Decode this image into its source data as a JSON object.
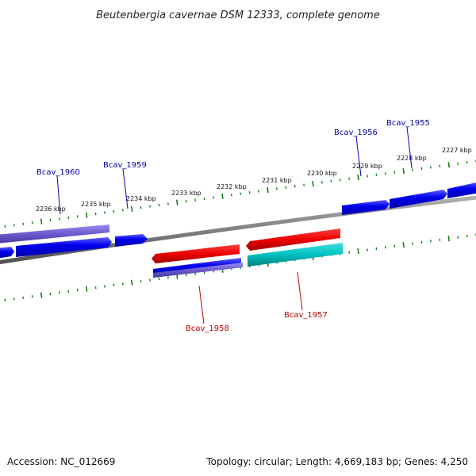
{
  "title": "Beutenbergia cavernae DSM 12333, complete genome",
  "footer": {
    "accession": "Accession: NC_012669",
    "summary": "Topology: circular; Length: 4,669,183 bp; Genes: 4,250"
  },
  "colors": {
    "backbone": "#808080",
    "ticks": "#1a7a1a",
    "gene_blue": "#0000ee",
    "gene_purple": "#6a5acd",
    "gene_red": "#ee0000",
    "gene_cyan": "#00c0c0",
    "label_blue": "#0000aa",
    "label_red": "#bb0000"
  },
  "scale_labels": [
    "2236 kbp",
    "2235 kbp",
    "2234 kbp",
    "2233 kbp",
    "2232 kbp",
    "2231 kbp",
    "2230 kbp",
    "2229 kbp",
    "2228 kbp",
    "2227 kbp"
  ],
  "gene_labels_top": [
    "Bcav_1960",
    "Bcav_1959",
    "Bcav_1956",
    "Bcav_1955"
  ],
  "gene_labels_bottom": [
    "Bcav_1958",
    "Bcav_1957"
  ]
}
